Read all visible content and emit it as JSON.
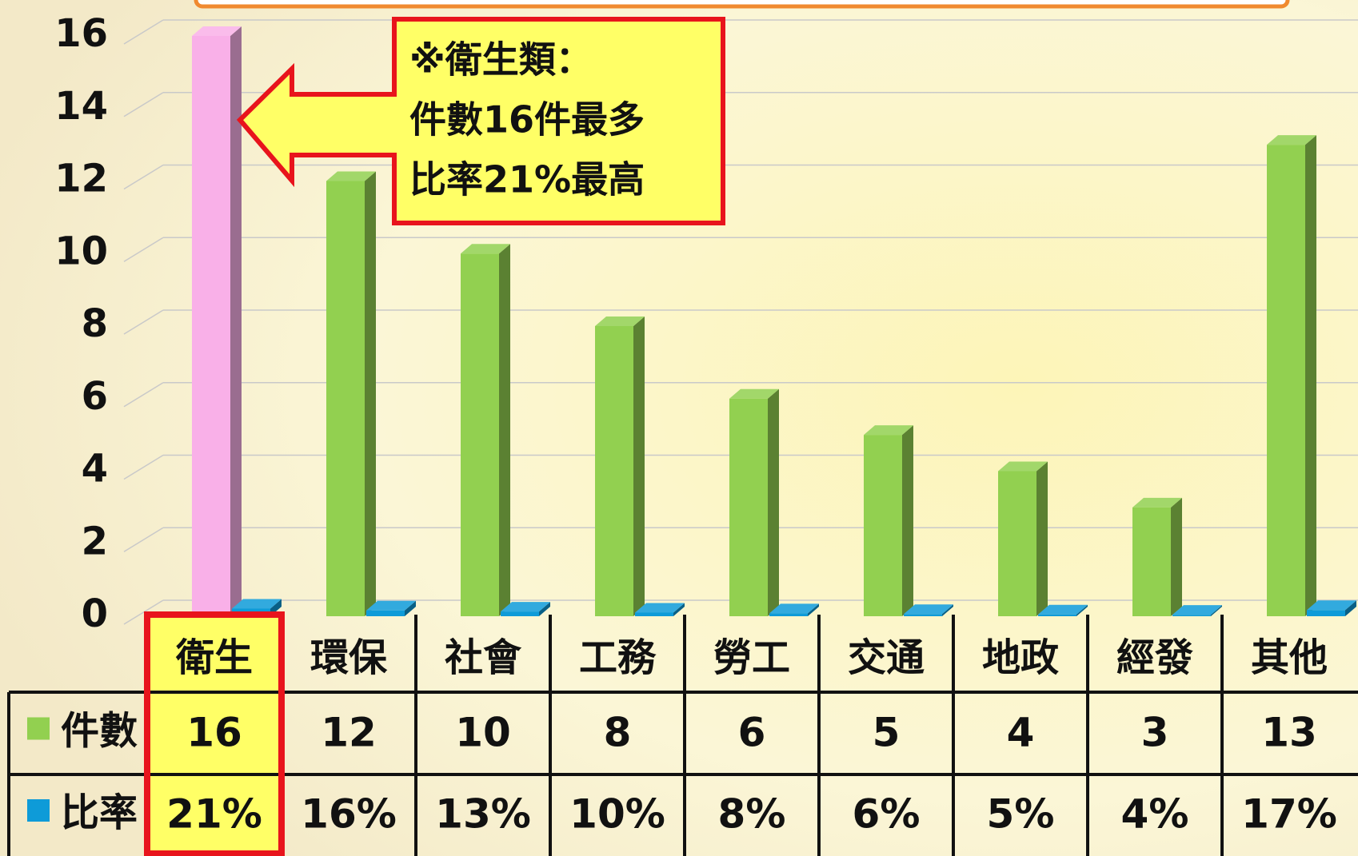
{
  "chart_data": {
    "type": "bar3d",
    "categories": [
      "衛生",
      "環保",
      "社會",
      "工務",
      "勞工",
      "交通",
      "地政",
      "經發",
      "其他"
    ],
    "series": [
      {
        "name": "件數",
        "color": "#92d050",
        "colors": [
          "#f9b0e8",
          "#92d050",
          "#92d050",
          "#92d050",
          "#92d050",
          "#92d050",
          "#92d050",
          "#92d050",
          "#92d050"
        ],
        "values": [
          16,
          12,
          10,
          8,
          6,
          5,
          4,
          3,
          13
        ]
      },
      {
        "name": "比率",
        "color": "#0e9bd8",
        "values": [
          0.21,
          0.16,
          0.13,
          0.1,
          0.08,
          0.06,
          0.05,
          0.04,
          0.17
        ],
        "value_labels": [
          "21%",
          "16%",
          "13%",
          "10%",
          "8%",
          "6%",
          "5%",
          "4%",
          "17%"
        ]
      }
    ],
    "ylim": [
      0,
      16
    ],
    "yticks": [
      0,
      2,
      4,
      6,
      8,
      10,
      12,
      14,
      16
    ],
    "grid": true,
    "annotation": {
      "lines": [
        "※衛生類：",
        "件數16件最多",
        "比率21%最高"
      ]
    }
  }
}
